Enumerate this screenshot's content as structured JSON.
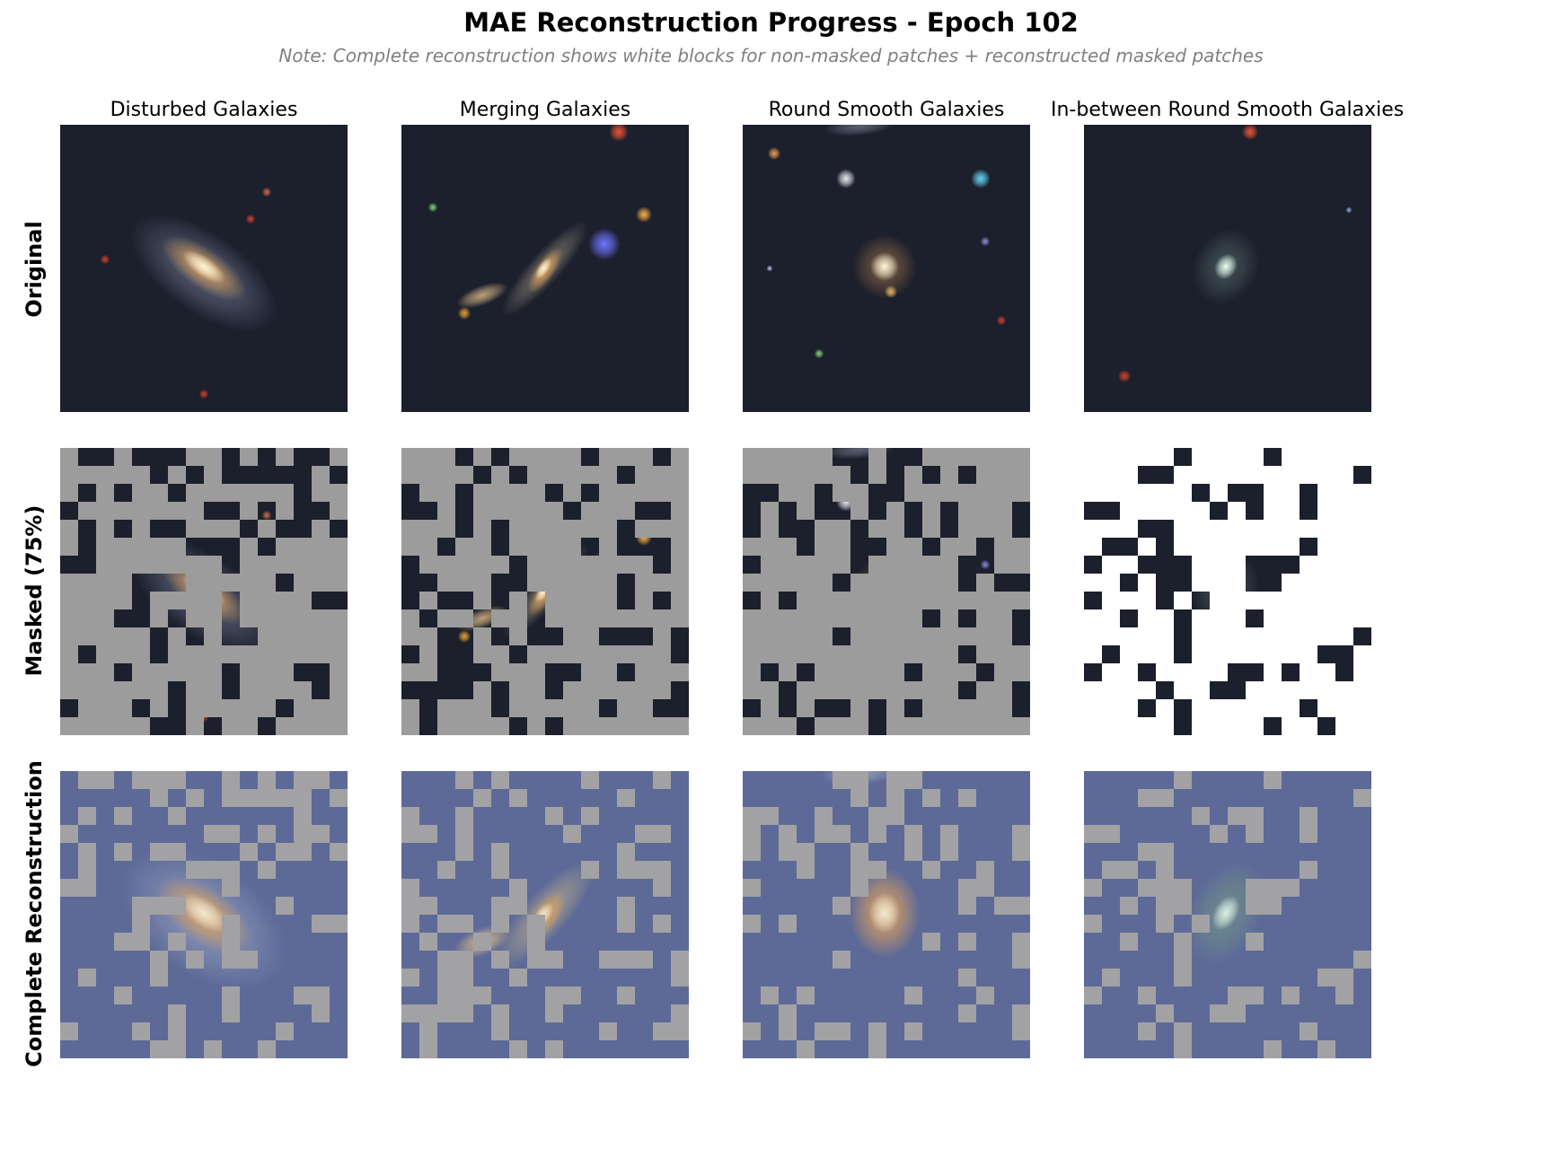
{
  "chart_data": {
    "type": "image-grid",
    "title": "MAE Reconstruction Progress - Epoch 102",
    "subtitle": "Note: Complete reconstruction shows white blocks for non-masked patches + reconstructed masked patches",
    "mask_ratio_label": "Masked (75%)",
    "columns": [
      {
        "label": "Disturbed Galaxies"
      },
      {
        "label": "Merging Galaxies"
      },
      {
        "label": "Round Smooth Galaxies"
      },
      {
        "label": "In-between Round Smooth Galaxies"
      }
    ],
    "rows": [
      {
        "label": "Original"
      },
      {
        "label": "Masked (75%)"
      },
      {
        "label": "Complete Reconstruction"
      }
    ],
    "grid": {
      "patches_per_side": 16,
      "visible_fraction": 0.25
    },
    "colors": {
      "sky": "#1c1f2c",
      "masked_fill": "#9c9c9c",
      "masked_fill_alt": "#ffffff",
      "recon_background": "#5d6a98",
      "recon_visible": "#a2a2a4",
      "galaxy_core": "#fff6d6",
      "galaxy_warm": "#e6a45a",
      "star_red": "#d0402c",
      "star_blue": "#6f73ff",
      "star_cyan": "#64d6f2"
    }
  }
}
